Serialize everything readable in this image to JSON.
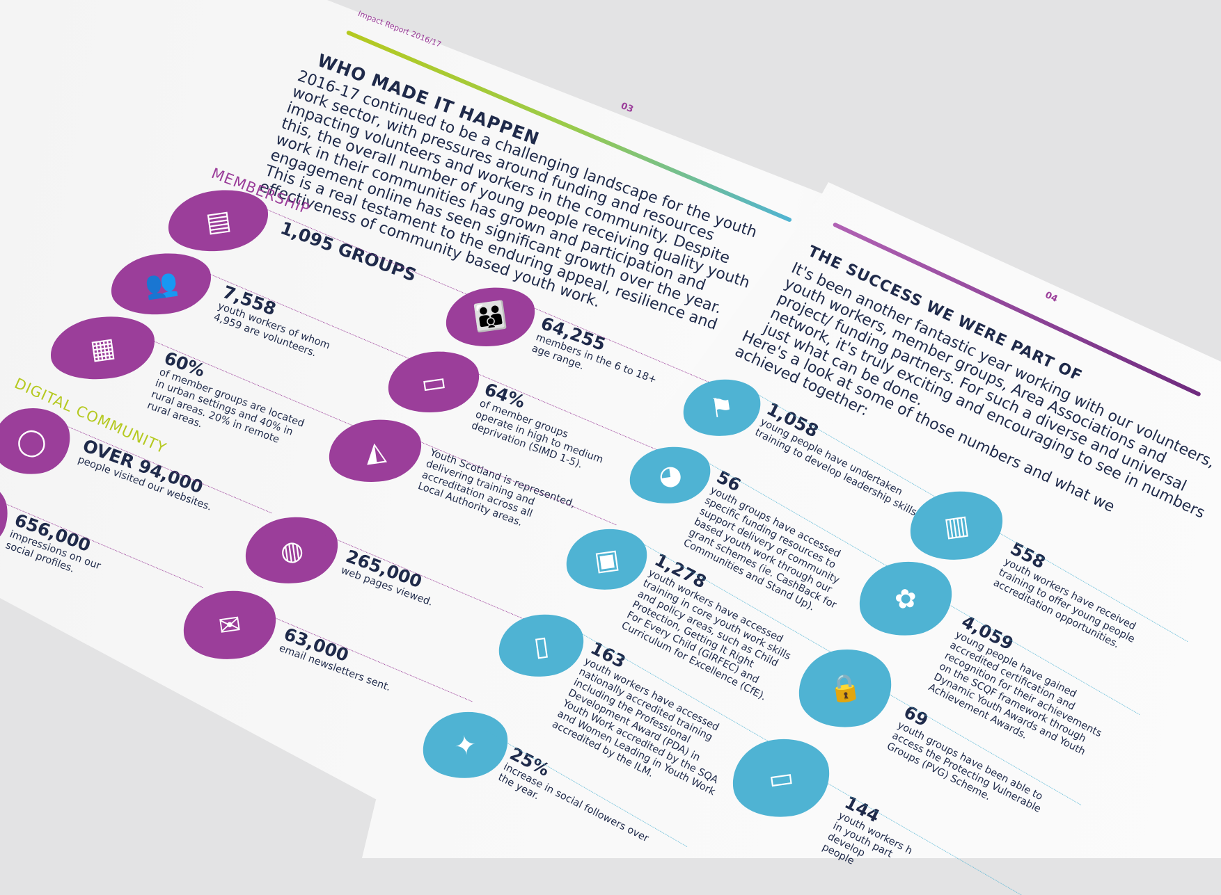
{
  "left_page": {
    "header": "Impact Report 2016/17",
    "page_number": "03",
    "title": "WHO MADE IT HAPPEN",
    "intro_lines": [
      "2016-17 continued to be a challenging landscape for the youth",
      "work sector, with pressures around funding and resources",
      "impacting volunteers and workers in the community. Despite",
      "this, the overall number of young people receiving quality youth",
      "work in their communities has grown and participation and",
      "engagement online has seen significant growth over the year.",
      "This is a real testament to the enduring appeal, resilience and",
      "effectiveness of community based youth work."
    ],
    "membership_heading": "MEMBERSHIP",
    "digital_heading": "DIGITAL COMMUNITY",
    "stats": [
      {
        "icon": "presentation-icon",
        "value": "1,095 GROUPS",
        "desc": []
      },
      {
        "icon": "people-group-icon",
        "value": "7,558",
        "desc": [
          "youth workers of whom",
          "4,959 are volunteers."
        ]
      },
      {
        "icon": "buildings-icon",
        "value": "60%",
        "desc": [
          "of member groups are located",
          "in urban settings and 40% in",
          "rural areas. 20% in remote",
          "rural areas."
        ]
      },
      {
        "icon": "parent-child-icon",
        "value": "64,255",
        "desc": [
          "members in the 6 to 18+",
          "age range."
        ]
      },
      {
        "icon": "teacher-board-icon",
        "value": "64%",
        "desc": [
          "of member groups",
          "operate in high to medium",
          "deprivation (SIMD 1-5)."
        ]
      },
      {
        "icon": "scotland-map-icon",
        "value": "",
        "desc": [
          "Youth Scotland is represented,",
          "delivering training and",
          "accreditation across all",
          "Local Authority areas."
        ]
      },
      {
        "icon": "mouse-icon",
        "value": "OVER 94,000",
        "desc": [
          "people visited our websites."
        ]
      },
      {
        "icon": "social-icon",
        "value": "656,000",
        "desc": [
          "impressions on our",
          "social profiles."
        ]
      },
      {
        "icon": "globe-icon",
        "value": "265,000",
        "desc": [
          "web pages viewed."
        ]
      },
      {
        "icon": "envelope-icon",
        "value": "63,000",
        "desc": [
          "email newsletters sent."
        ]
      }
    ]
  },
  "right_page": {
    "page_number": "04",
    "title": "THE SUCCESS WE WERE PART OF",
    "intro_lines": [
      "It's been another fantastic year working with our volunteers,",
      "youth workers, member groups, Area Associations and",
      "project/ funding partners. For such a diverse and universal",
      "network, it's truly exciting and encouraging to see in numbers",
      "just what can be done."
    ],
    "intro2_lines": [
      "Here's a look at some of those numbers and what we",
      "achieved together:"
    ],
    "stats": [
      {
        "icon": "flag-person-icon",
        "value": "1,058",
        "desc": [
          "young people have undertaken",
          "training to develop leadership skills."
        ]
      },
      {
        "icon": "piggy-bank-icon",
        "value": "56",
        "desc": [
          "youth groups have accessed",
          "specific funding resources to",
          "support delivery of community",
          "based youth work through our",
          "grant schemes (ie. CashBack for",
          "Communities and Stand Up)."
        ]
      },
      {
        "icon": "audience-screen-icon",
        "value": "1,278",
        "desc": [
          "youth workers have accessed",
          "training in core youth work skills",
          "and policy areas, such as Child",
          "Protection, Getting It Right",
          "For Every Child (GIRFEC) and",
          "Curriculum for Excellence (CfE)."
        ]
      },
      {
        "icon": "book-icon",
        "value": "163",
        "desc": [
          "youth workers have accessed",
          "nationally accredited training",
          "including the Professional",
          "Development Award (PDA) in",
          "Youth Work accredited by the SQA",
          "and Women Leading in Youth Work",
          "accredited by the ILM."
        ]
      },
      {
        "icon": "twitter-bird-icon",
        "value": "25%",
        "desc": [
          "increase in social followers over",
          "the year."
        ]
      },
      {
        "icon": "certificate-icon",
        "value": "558",
        "desc": [
          "youth workers have received",
          "training to offer young people",
          "accreditation opportunities."
        ]
      },
      {
        "icon": "rosette-icon",
        "value": "4,059",
        "desc": [
          "young people have gained",
          "accredited certification and",
          "recognition for their achievements",
          "on the SCQF framework through",
          "Dynamic Youth Awards and Youth",
          "Achievement Awards."
        ]
      },
      {
        "icon": "padlock-icon",
        "value": "69",
        "desc": [
          "youth groups have been able to",
          "access the Protecting Vulnerable",
          "Groups (PVG) Scheme."
        ]
      },
      {
        "icon": "teacher-board-icon",
        "value": "144",
        "desc": [
          "youth workers h",
          "in youth part",
          "develop",
          "people"
        ]
      }
    ]
  },
  "colors": {
    "purple": "#9b3e9a",
    "lime": "#b5c920",
    "blue": "#4fb3d3",
    "navy": "#1f2a4a"
  }
}
